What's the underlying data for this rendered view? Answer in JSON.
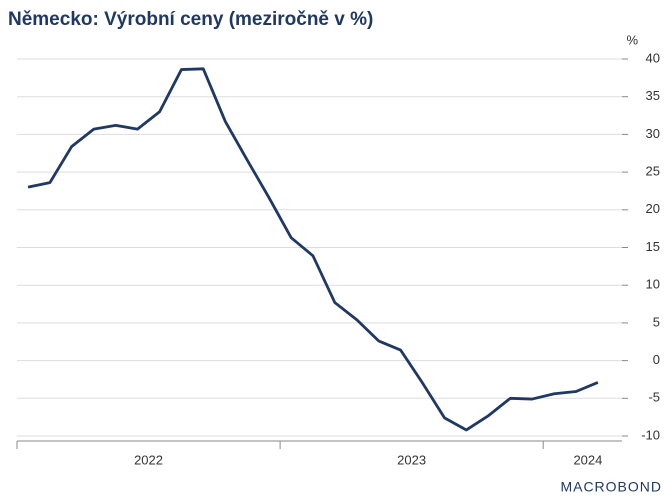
{
  "chart_data": {
    "type": "line",
    "title": "Německo: Výrobní ceny (meziročně v %)",
    "unit": "%",
    "source": "MACROBOND",
    "x": [
      2022.042,
      2022.125,
      2022.208,
      2022.292,
      2022.375,
      2022.458,
      2022.542,
      2022.625,
      2022.708,
      2022.792,
      2022.875,
      2022.958,
      2023.042,
      2023.125,
      2023.208,
      2023.292,
      2023.375,
      2023.458,
      2023.542,
      2023.625,
      2023.708,
      2023.792,
      2023.875,
      2023.958,
      2024.042,
      2024.125,
      2024.208
    ],
    "series": [
      {
        "name": "Výrobní ceny",
        "color": "#1f3864",
        "values": [
          23.0,
          23.6,
          28.4,
          30.7,
          31.2,
          30.7,
          33.0,
          38.6,
          38.7,
          31.7,
          26.6,
          21.6,
          16.3,
          13.9,
          7.7,
          5.4,
          2.6,
          1.4,
          -3.0,
          -7.6,
          -9.2,
          -7.3,
          -5.0,
          -5.1,
          -4.4,
          -4.1,
          -2.9
        ]
      }
    ],
    "xlim": [
      2022,
      2024.33
    ],
    "xticks": [
      2022,
      2023,
      2024
    ],
    "year_labels": [
      {
        "value": 2022.5,
        "label": "2022"
      },
      {
        "value": 2023.5,
        "label": "2023"
      },
      {
        "value": 2024.17,
        "label": "2024"
      }
    ],
    "ylim": [
      -10,
      40
    ],
    "yticks": [
      -10,
      -5,
      0,
      5,
      10,
      15,
      20,
      25,
      30,
      35,
      40
    ],
    "grid": true
  }
}
